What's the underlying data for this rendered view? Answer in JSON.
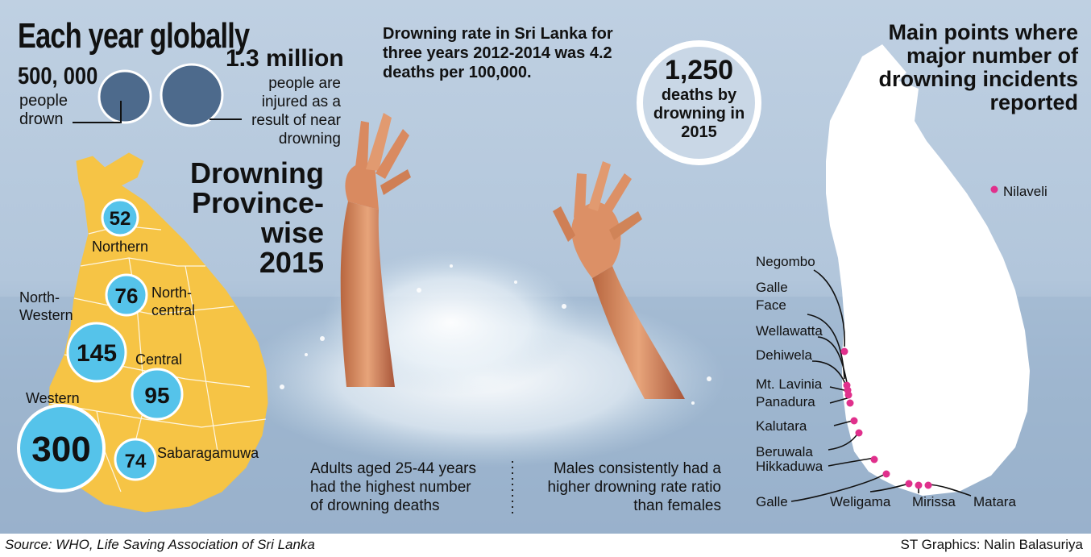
{
  "global": {
    "title": "Each year globally",
    "drown_number": "500, 000",
    "drown_desc_1": "people",
    "drown_desc_2": "drown",
    "injured_number": "1.3 million",
    "injured_desc": [
      "people are",
      "injured as a",
      "result of near",
      "drowning"
    ]
  },
  "rate_text": [
    "Drowning rate in Sri Lanka for",
    "three years 2012-2014 was 4.2",
    "deaths per 100,000."
  ],
  "deaths_2015": {
    "number": "1,250",
    "line1": "deaths by",
    "line2": "drowning in",
    "line3": "2015"
  },
  "province_title": [
    "Drowning",
    "Province-wise",
    "2015"
  ],
  "provinces": [
    {
      "name": "Northern",
      "value": "52"
    },
    {
      "name": "North-central",
      "value": "76"
    },
    {
      "name": "North-Western",
      "value": "145"
    },
    {
      "name": "Central",
      "value": "95"
    },
    {
      "name": "Western",
      "value": "300"
    },
    {
      "name": "Sabaragamuwa",
      "value": "74"
    }
  ],
  "province_labels": {
    "northern": "Northern",
    "nc1": "North-",
    "nc2": "central",
    "nw1": "North-",
    "nw2": "Western",
    "central": "Central",
    "western": "Western",
    "sabaragamuwa": "Sabaragamuwa"
  },
  "facts": {
    "adults": [
      "Adults aged 25-44 years",
      "had the highest number",
      "of drowning deaths"
    ],
    "males": [
      "Males consistently had a",
      "higher drowning rate ratio",
      "than females"
    ]
  },
  "incidents_title": [
    "Main points where",
    "major number of",
    "drowning incidents",
    "reported"
  ],
  "locations": [
    "Nilaveli",
    "Negombo",
    "Galle",
    "Face",
    "Wellawatta",
    "Dehiwela",
    "Mt. Lavinia",
    "Panadura",
    "Kalutara",
    "Beruwala",
    "Hikkaduwa",
    "Galle",
    "Weligama",
    "Mirissa",
    "Matara"
  ],
  "footer": {
    "source": "Source: WHO, Life Saving Association of Sri Lanka",
    "credit": "ST Graphics: Nalin Balasuriya"
  },
  "colors": {
    "map_yellow": "#f6c445",
    "bubble_blue": "#55c3ea",
    "dark_circle": "#4d6a8c",
    "pin_pink": "#e0308c",
    "sea": "#9db5ce"
  }
}
